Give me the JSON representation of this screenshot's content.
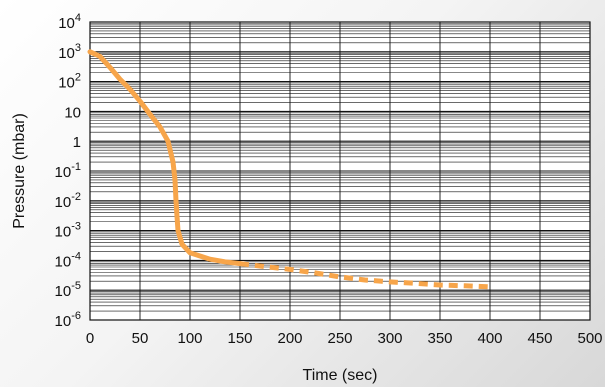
{
  "chart_data": {
    "type": "line",
    "xlabel": "Time (sec)",
    "ylabel": "Pressure (mbar)",
    "xlim": [
      0,
      500
    ],
    "ylim": [
      1e-06,
      10000.0
    ],
    "y_scale": "log",
    "x_ticks": [
      "0",
      "50",
      "100",
      "150",
      "200",
      "250",
      "300",
      "350",
      "400",
      "450",
      "500"
    ],
    "y_ticks": [
      {
        "value": 10000.0,
        "base": "10",
        "sup": "4"
      },
      {
        "value": 1000.0,
        "base": "10",
        "sup": "3"
      },
      {
        "value": 100.0,
        "base": "10",
        "sup": "2"
      },
      {
        "value": 10,
        "base": "10",
        "sup": ""
      },
      {
        "value": 1,
        "base": "1",
        "sup": ""
      },
      {
        "value": 0.1,
        "base": "10",
        "sup": "-1"
      },
      {
        "value": 0.01,
        "base": "10",
        "sup": "-2"
      },
      {
        "value": 0.001,
        "base": "10",
        "sup": "-3"
      },
      {
        "value": 0.0001,
        "base": "10",
        "sup": "-4"
      },
      {
        "value": 1e-05,
        "base": "10",
        "sup": "-5"
      },
      {
        "value": 1e-06,
        "base": "10",
        "sup": "-6"
      }
    ],
    "grid": true,
    "colors": {
      "series": "#F7A54A",
      "grid": "#111111"
    },
    "series": [
      {
        "style": "solid",
        "points": [
          [
            0,
            1000
          ],
          [
            10,
            700
          ],
          [
            20,
            300
          ],
          [
            30,
            120
          ],
          [
            40,
            55
          ],
          [
            50,
            22
          ],
          [
            60,
            8
          ],
          [
            70,
            3
          ],
          [
            78,
            1
          ],
          [
            83,
            0.2
          ],
          [
            85,
            0.05
          ],
          [
            86,
            0.01
          ],
          [
            87,
            0.003
          ],
          [
            88,
            0.001
          ],
          [
            92,
            0.00035
          ],
          [
            100,
            0.00018
          ],
          [
            110,
            0.00014
          ],
          [
            120,
            0.00011
          ],
          [
            135,
            9e-05
          ],
          [
            150,
            7.8e-05
          ]
        ]
      },
      {
        "style": "dashed",
        "points": [
          [
            150,
            7.8e-05
          ],
          [
            175,
            6.2e-05
          ],
          [
            200,
            5e-05
          ],
          [
            225,
            3.8e-05
          ],
          [
            250,
            2.8e-05
          ],
          [
            275,
            2.2e-05
          ],
          [
            300,
            1.9e-05
          ],
          [
            325,
            1.7e-05
          ],
          [
            350,
            1.5e-05
          ],
          [
            375,
            1.4e-05
          ],
          [
            400,
            1.3e-05
          ]
        ]
      }
    ]
  }
}
